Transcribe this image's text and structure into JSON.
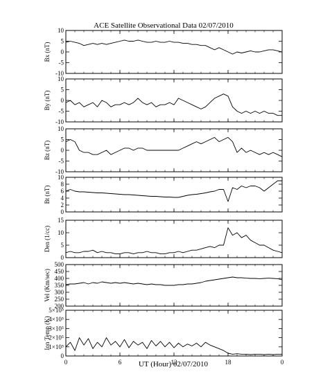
{
  "title": "ACE Satellite Observational Data   02/07/2010",
  "xlabel": "UT (Hour)   02/07/2010",
  "x_tick_labels": [
    "0",
    "6",
    "12",
    "18",
    "0"
  ],
  "colors": {
    "line": "#000000",
    "frame": "#000000",
    "background": "#ffffff"
  },
  "chart_data": [
    {
      "type": "line",
      "ylabel": "Bx (nT)",
      "ylim": [
        -10,
        10
      ],
      "y_ticks": [
        -10,
        -5,
        0,
        5,
        10
      ],
      "y_tick_labels": [
        "-10",
        "-5",
        "0",
        "5",
        "10"
      ],
      "x_hours": [
        0,
        0.5,
        1,
        1.5,
        2,
        2.5,
        3,
        3.5,
        4,
        4.5,
        5,
        5.5,
        6,
        6.5,
        7,
        7.5,
        8,
        8.5,
        9,
        9.5,
        10,
        10.5,
        11,
        11.5,
        12,
        12.5,
        13,
        13.5,
        14,
        14.5,
        15,
        15.5,
        16,
        16.5,
        17,
        17.5,
        18,
        18.5,
        19,
        19.5,
        20,
        20.5,
        21,
        21.5,
        22,
        22.5,
        23,
        23.5,
        24
      ],
      "values": [
        4.5,
        5,
        4.5,
        4,
        3,
        3.5,
        4,
        3.5,
        4,
        3.5,
        4,
        4.5,
        5,
        5.5,
        5,
        5,
        5.5,
        5,
        4.5,
        4.5,
        5,
        4.5,
        4.5,
        5,
        4.5,
        4.5,
        4,
        4,
        3.5,
        3.5,
        3,
        3,
        2,
        1,
        2,
        1,
        0,
        -1,
        0,
        -0.5,
        0,
        0.5,
        0,
        0,
        0.5,
        1,
        1,
        0.5,
        0
      ]
    },
    {
      "type": "line",
      "ylabel": "By (nT)",
      "ylim": [
        -10,
        10
      ],
      "y_ticks": [
        -10,
        -5,
        0,
        5,
        10
      ],
      "y_tick_labels": [
        "-10",
        "-5",
        "0",
        "5",
        "10"
      ],
      "x_hours": [
        0,
        0.5,
        1,
        1.5,
        2,
        2.5,
        3,
        3.5,
        4,
        4.5,
        5,
        5.5,
        6,
        6.5,
        7,
        7.5,
        8,
        8.5,
        9,
        9.5,
        10,
        10.5,
        11,
        11.5,
        12,
        12.5,
        13,
        13.5,
        14,
        14.5,
        15,
        15.5,
        16,
        16.5,
        17,
        17.5,
        18,
        18.5,
        19,
        19.5,
        20,
        20.5,
        21,
        21.5,
        22,
        22.5,
        23,
        23.5,
        24
      ],
      "values": [
        -1,
        0,
        -2,
        -1,
        -3,
        -2,
        -1,
        -3,
        0,
        -1,
        -3,
        -2,
        -2,
        -1,
        -2,
        -1,
        1,
        -1,
        -2,
        -1,
        -3,
        -2,
        -2,
        -1,
        -2,
        1,
        0,
        -1,
        -2,
        -3,
        -4,
        -3,
        -1,
        1,
        2,
        3,
        2,
        -3,
        -5,
        -6,
        -5,
        -6,
        -5,
        -6,
        -5,
        -6,
        -6,
        -7,
        -7
      ]
    },
    {
      "type": "line",
      "ylabel": "Bz (nT)",
      "ylim": [
        -10,
        10
      ],
      "y_ticks": [
        -10,
        -5,
        0,
        5,
        10
      ],
      "y_tick_labels": [
        "-10",
        "-5",
        "0",
        "5",
        "10"
      ],
      "x_hours": [
        0,
        0.5,
        1,
        1.5,
        2,
        2.5,
        3,
        3.5,
        4,
        4.5,
        5,
        5.5,
        6,
        6.5,
        7,
        7.5,
        8,
        8.5,
        9,
        9.5,
        10,
        10.5,
        11,
        11.5,
        12,
        12.5,
        13,
        13.5,
        14,
        14.5,
        15,
        15.5,
        16,
        16.5,
        17,
        17.5,
        18,
        18.5,
        19,
        19.5,
        20,
        20.5,
        21,
        21.5,
        22,
        22.5,
        23,
        23.5,
        24
      ],
      "values": [
        4,
        5,
        4,
        0,
        -1,
        -1,
        -2,
        -2,
        -1,
        0,
        -2,
        -1,
        0,
        1,
        1,
        0,
        1,
        1,
        0,
        0,
        0,
        0,
        0,
        0,
        0,
        0,
        1,
        2,
        3,
        4,
        3,
        4,
        5,
        6,
        4,
        5,
        6,
        4,
        -1,
        1,
        -1,
        0,
        -1,
        -2,
        -1,
        -2,
        -1,
        -2,
        -3
      ]
    },
    {
      "type": "line",
      "ylabel": "Bt (nT)",
      "ylim": [
        0,
        10
      ],
      "y_ticks": [
        0,
        2,
        4,
        6,
        8,
        10
      ],
      "y_tick_labels": [
        "0",
        "2",
        "4",
        "6",
        "8",
        "10"
      ],
      "x_hours": [
        0,
        0.5,
        1,
        1.5,
        2,
        2.5,
        3,
        3.5,
        4,
        4.5,
        5,
        5.5,
        6,
        6.5,
        7,
        7.5,
        8,
        8.5,
        9,
        9.5,
        10,
        10.5,
        11,
        11.5,
        12,
        12.5,
        13,
        13.5,
        14,
        14.5,
        15,
        15.5,
        16,
        16.5,
        17,
        17.5,
        18,
        18.5,
        19,
        19.5,
        20,
        20.5,
        21,
        21.5,
        22,
        22.5,
        23,
        23.5,
        24
      ],
      "values": [
        6,
        6.5,
        6,
        5.8,
        5.8,
        5.7,
        5.6,
        5.5,
        5.5,
        5.4,
        5.3,
        5.2,
        5.1,
        5,
        5,
        4.9,
        4.8,
        4.7,
        4.6,
        4.5,
        4.5,
        4.4,
        4.3,
        4.3,
        4.2,
        4.2,
        4.5,
        4.8,
        5,
        5.1,
        5.3,
        5.5,
        5.8,
        6,
        6.5,
        6.5,
        3,
        7,
        6.5,
        7.5,
        7,
        7.5,
        7.5,
        7,
        6,
        7,
        8,
        9,
        9
      ]
    },
    {
      "type": "line",
      "ylabel": "Den (1/cc)",
      "ylim": [
        0,
        15
      ],
      "y_ticks": [
        0,
        5,
        10,
        15
      ],
      "y_tick_labels": [
        "0",
        "5",
        "10",
        "15"
      ],
      "x_hours": [
        0,
        0.5,
        1,
        1.5,
        2,
        2.5,
        3,
        3.5,
        4,
        4.5,
        5,
        5.5,
        6,
        6.5,
        7,
        7.5,
        8,
        8.5,
        9,
        9.5,
        10,
        10.5,
        11,
        11.5,
        12,
        12.5,
        13,
        13.5,
        14,
        14.5,
        15,
        15.5,
        16,
        16.5,
        17,
        17.5,
        18,
        18.5,
        19,
        19.5,
        20,
        20.5,
        21,
        21.5,
        22,
        22.5,
        23,
        23.5,
        24
      ],
      "values": [
        2,
        2.5,
        2,
        2,
        2.5,
        2.5,
        3,
        2,
        2.5,
        2,
        2,
        1.5,
        1.5,
        2,
        2,
        1.5,
        2,
        2,
        2.5,
        2,
        2,
        1.5,
        1.5,
        2,
        2,
        2.5,
        2,
        2.5,
        3,
        3,
        3.5,
        4,
        4.5,
        4,
        5,
        5,
        12,
        9,
        10,
        8,
        9,
        7,
        6,
        5,
        5,
        4,
        3,
        2.5,
        2
      ]
    },
    {
      "type": "line",
      "ylabel": "Vel (Km/sec)",
      "ylim": [
        200,
        500
      ],
      "y_ticks": [
        200,
        250,
        300,
        350,
        400,
        450,
        500
      ],
      "y_tick_labels": [
        "200",
        "250",
        "300",
        "350",
        "400",
        "450",
        "500"
      ],
      "x_hours": [
        0,
        0.5,
        1,
        1.5,
        2,
        2.5,
        3,
        3.5,
        4,
        4.5,
        5,
        5.5,
        6,
        6.5,
        7,
        7.5,
        8,
        8.5,
        9,
        9.5,
        10,
        10.5,
        11,
        11.5,
        12,
        12.5,
        13,
        13.5,
        14,
        14.5,
        15,
        15.5,
        16,
        16.5,
        17,
        17.5,
        18,
        18.5,
        19,
        19.5,
        20,
        20.5,
        21,
        21.5,
        22,
        22.5,
        23,
        23.5,
        24
      ],
      "values": [
        355,
        360,
        360,
        365,
        370,
        360,
        370,
        365,
        375,
        370,
        365,
        370,
        365,
        370,
        365,
        360,
        365,
        360,
        355,
        360,
        355,
        355,
        350,
        350,
        350,
        355,
        355,
        360,
        360,
        365,
        370,
        380,
        385,
        390,
        395,
        400,
        405,
        410,
        405,
        405,
        402,
        400,
        400,
        398,
        400,
        402,
        400,
        398,
        390
      ]
    },
    {
      "type": "line",
      "ylabel": "Ion Temp (K)",
      "ylim": [
        0,
        500000
      ],
      "y_ticks": [
        0,
        100000,
        200000,
        300000,
        400000,
        500000
      ],
      "y_tick_labels": [
        "0",
        "1×10⁵",
        "2×10⁵",
        "3×10⁵",
        "4×10⁵",
        "5×10⁵"
      ],
      "x_hours": [
        0,
        0.5,
        1,
        1.5,
        2,
        2.5,
        3,
        3.5,
        4,
        4.5,
        5,
        5.5,
        6,
        6.5,
        7,
        7.5,
        8,
        8.5,
        9,
        9.5,
        10,
        10.5,
        11,
        11.5,
        12,
        12.5,
        13,
        13.5,
        14,
        14.5,
        15,
        15.5,
        16,
        16.5,
        17,
        17.5,
        18,
        18.5,
        19,
        19.5,
        20,
        20.5,
        21,
        21.5,
        22,
        22.5,
        23,
        23.5,
        24
      ],
      "values": [
        100000,
        150000,
        60000,
        200000,
        120000,
        190000,
        80000,
        150000,
        100000,
        200000,
        120000,
        160000,
        100000,
        180000,
        90000,
        160000,
        120000,
        150000,
        80000,
        170000,
        110000,
        160000,
        100000,
        150000,
        90000,
        140000,
        100000,
        130000,
        110000,
        140000,
        100000,
        150000,
        120000,
        100000,
        80000,
        60000,
        30000,
        20000,
        25000,
        20000,
        20000,
        15000,
        20000,
        20000,
        15000,
        20000,
        15000,
        20000,
        20000
      ]
    }
  ]
}
